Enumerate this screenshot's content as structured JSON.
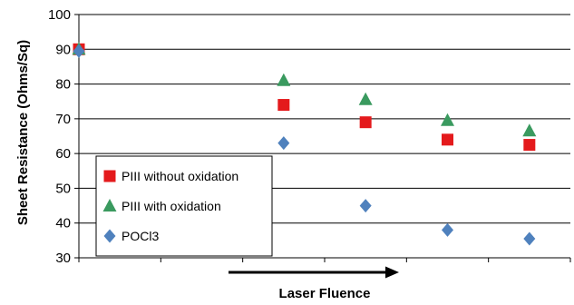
{
  "chart_data": {
    "type": "scatter",
    "title": "",
    "xlabel": "Laser Fluence",
    "ylabel": "Sheet Resistance (Ohms/Sq)",
    "ylim": [
      30,
      100
    ],
    "yticks": [
      30,
      40,
      50,
      60,
      70,
      80,
      90,
      100
    ],
    "xslots": 6,
    "grid": "horizontal",
    "x_arrow": "increasing fluence",
    "legend_position": "bottom-left",
    "series": [
      {
        "name": "PIII without oxidation",
        "marker": "square",
        "color": "#e41a1c",
        "points": [
          {
            "slot": 0,
            "value": 90
          },
          {
            "slot": 2,
            "value": 74
          },
          {
            "slot": 3,
            "value": 69
          },
          {
            "slot": 4,
            "value": 64
          },
          {
            "slot": 5,
            "value": 62.5
          }
        ]
      },
      {
        "name": "PIII with oxidation",
        "marker": "triangle",
        "color": "#3a9a5f",
        "points": [
          {
            "slot": 0,
            "value": 90
          },
          {
            "slot": 2,
            "value": 81
          },
          {
            "slot": 3,
            "value": 75.5
          },
          {
            "slot": 4,
            "value": 69.5
          },
          {
            "slot": 5,
            "value": 66.5
          }
        ]
      },
      {
        "name": "POCl3",
        "marker": "diamond",
        "color": "#4f81bd",
        "points": [
          {
            "slot": 0,
            "value": 89.5
          },
          {
            "slot": 2,
            "value": 63
          },
          {
            "slot": 3,
            "value": 45
          },
          {
            "slot": 4,
            "value": 38
          },
          {
            "slot": 5,
            "value": 35.5
          }
        ]
      }
    ]
  }
}
